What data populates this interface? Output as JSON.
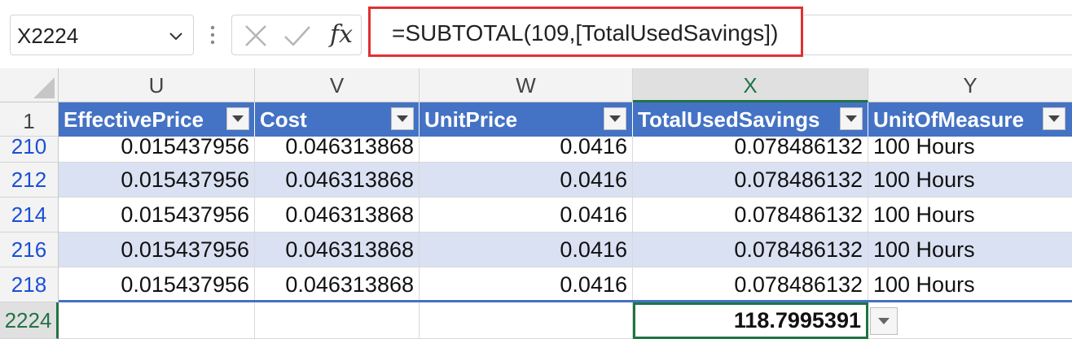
{
  "name_box": {
    "value": "X2224"
  },
  "formula_bar": {
    "formula": "=SUBTOTAL(109,[TotalUsedSavings])",
    "fx_label": "fx"
  },
  "columns": [
    "U",
    "V",
    "W",
    "X",
    "Y"
  ],
  "header_row_number": "1",
  "table_headers": [
    "EffectivePrice",
    "Cost",
    "UnitPrice",
    "TotalUsedSavings",
    "UnitOfMeasure"
  ],
  "rows": [
    {
      "row": "210",
      "cells": [
        "0.015437956",
        "0.046313868",
        "0.0416",
        "0.078486132",
        "100 Hours"
      ]
    },
    {
      "row": "212",
      "cells": [
        "0.015437956",
        "0.046313868",
        "0.0416",
        "0.078486132",
        "100 Hours"
      ]
    },
    {
      "row": "214",
      "cells": [
        "0.015437956",
        "0.046313868",
        "0.0416",
        "0.078486132",
        "100 Hours"
      ]
    },
    {
      "row": "216",
      "cells": [
        "0.015437956",
        "0.046313868",
        "0.0416",
        "0.078486132",
        "100 Hours"
      ]
    },
    {
      "row": "218",
      "cells": [
        "0.015437956",
        "0.046313868",
        "0.0416",
        "0.078486132",
        "100 Hours"
      ]
    }
  ],
  "total_row": {
    "row": "2224",
    "total_value": "118.7995391"
  },
  "selected_column": "X",
  "colors": {
    "table_header": "#4472c4",
    "band": "#d9e1f2",
    "selection": "#217346",
    "highlight_box": "#e03131"
  },
  "icons": [
    "chevron-down-icon",
    "more-vertical-icon",
    "cancel-icon",
    "enter-icon",
    "function-icon",
    "filter-dropdown-icon"
  ]
}
